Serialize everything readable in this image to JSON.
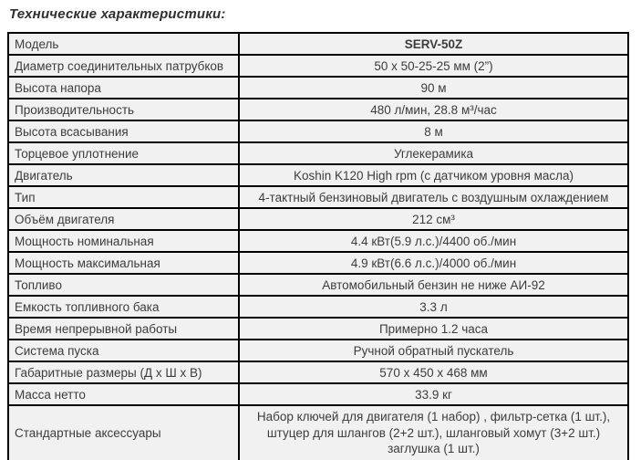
{
  "page": {
    "title": "Технические характеристики:"
  },
  "table": {
    "rows": [
      {
        "label": "Модель",
        "value": "SERV-50Z"
      },
      {
        "label": "Диаметр соединительных  патрубков",
        "value": "50 х 50-25-25 мм (2”)"
      },
      {
        "label": "Высота напора",
        "value": "90 м"
      },
      {
        "label": "Производительность",
        "value": "480 л/мин, 28.8 м³/час"
      },
      {
        "label": "Высота всасывания",
        "value": "8 м"
      },
      {
        "label": "Торцевое уплотнение",
        "value": "Углекерамика"
      },
      {
        "label": "Двигатель",
        "value": "Koshin K120 High rpm (с датчиком уровня масла)"
      },
      {
        "label": "Тип",
        "value": "4-тактный бензиновый двигатель с воздушным охлаждением"
      },
      {
        "label": "Объём двигателя",
        "value": "212 см³"
      },
      {
        "label": "Мощность номинальная",
        "value": "4.4 кВт(5.9 л.с.)/4400 об./мин"
      },
      {
        "label": "Мощность максимальная",
        "value": "4.9 кВт(6.6 л.с.)/4000 об./мин"
      },
      {
        "label": "Топливо",
        "value": "Автомобильный бензин не ниже АИ-92"
      },
      {
        "label": "Емкость топливного бака",
        "value": "3.3 л"
      },
      {
        "label": "Время непрерывной работы",
        "value": "Примерно 1.2  часа"
      },
      {
        "label": "Система пуска",
        "value": "Ручной обратный пускатель"
      },
      {
        "label": "Габаритные размеры (Д х Ш х В)",
        "value": "570 х 450 х 468 мм"
      },
      {
        "label": "Масса нетто",
        "value": "33.9 кг"
      },
      {
        "label": "Стандартные аксессуары",
        "value": "Набор ключей для двигателя (1 набор) , фильтр-сетка (1 шт.),\nштуцер для шлангов (2+2 шт.), шланговый хомут (3+2 шт.)\nзаглушка (1 шт.)"
      }
    ]
  },
  "colors": {
    "cell_background": "#f1f1f1",
    "border": "#000000",
    "text": "#3c3c3c",
    "page_background": "#ffffff"
  }
}
